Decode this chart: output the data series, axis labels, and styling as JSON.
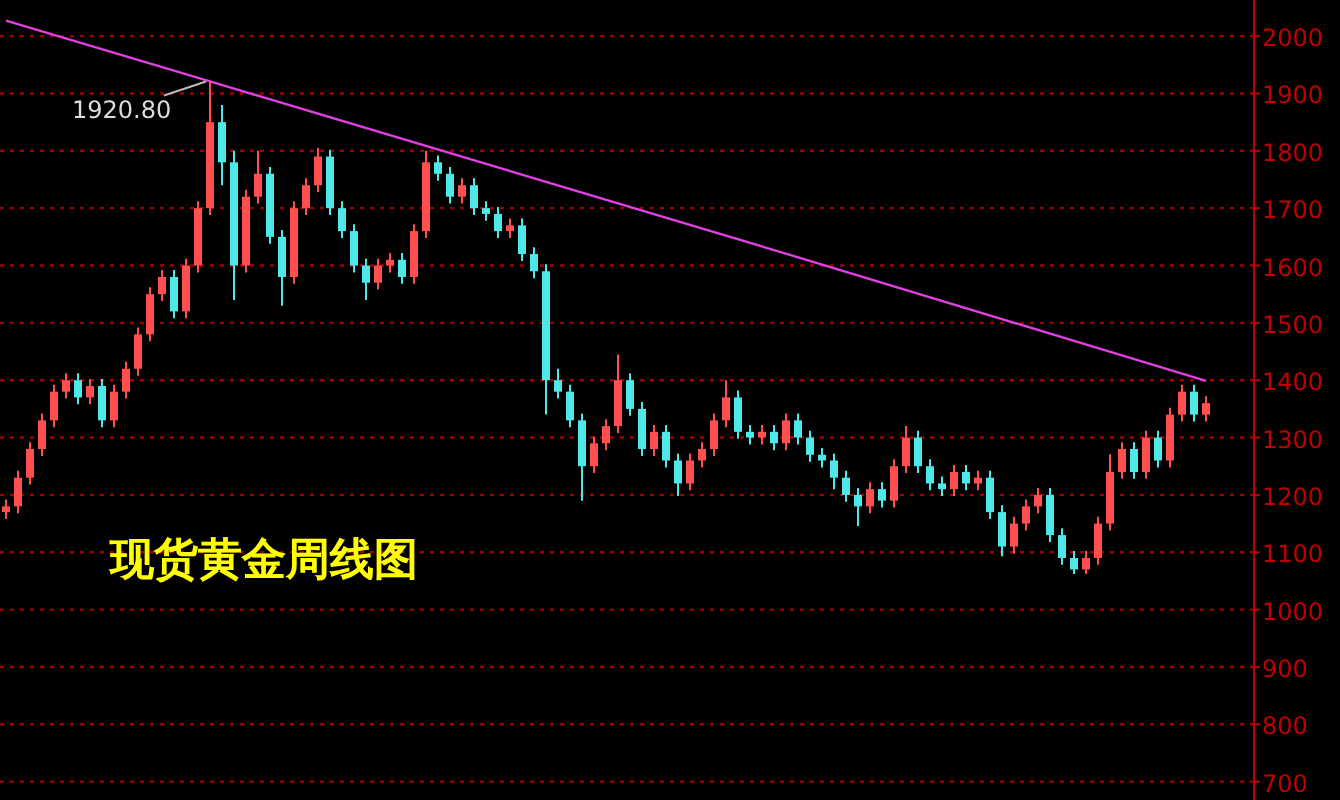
{
  "chart_data": {
    "type": "candlestick",
    "title": "现货黄金周线图",
    "categories": [
      null,
      null,
      null,
      null,
      null,
      null,
      null,
      null,
      null,
      null,
      null,
      null,
      null,
      null,
      null,
      null,
      null,
      null,
      null,
      null,
      null,
      null,
      null,
      null,
      null,
      null,
      null,
      null,
      null,
      null,
      null,
      null,
      null,
      null,
      null,
      null,
      null,
      null,
      null,
      null,
      null,
      null,
      null,
      null,
      null,
      null,
      null,
      null,
      null,
      null,
      null,
      null,
      null,
      null,
      null,
      null,
      null,
      null,
      null,
      null,
      null,
      null,
      null,
      null,
      null,
      null,
      null,
      null,
      null,
      null,
      null,
      null,
      null,
      null,
      null,
      null,
      null,
      null,
      null,
      null,
      null,
      null,
      null,
      null,
      null,
      null,
      null,
      null,
      null,
      null,
      null,
      null,
      null,
      null,
      null,
      null,
      null,
      null,
      null,
      null,
      null
    ],
    "ohlc": [
      [
        1170,
        1192,
        1158,
        1180
      ],
      [
        1180,
        1242,
        1168,
        1230
      ],
      [
        1230,
        1292,
        1218,
        1280
      ],
      [
        1280,
        1342,
        1268,
        1330
      ],
      [
        1330,
        1392,
        1318,
        1380
      ],
      [
        1380,
        1412,
        1368,
        1400
      ],
      [
        1400,
        1412,
        1358,
        1370
      ],
      [
        1370,
        1402,
        1358,
        1390
      ],
      [
        1390,
        1402,
        1318,
        1330
      ],
      [
        1330,
        1392,
        1318,
        1380
      ],
      [
        1380,
        1432,
        1368,
        1420
      ],
      [
        1420,
        1492,
        1408,
        1480
      ],
      [
        1480,
        1562,
        1468,
        1550
      ],
      [
        1550,
        1592,
        1538,
        1580
      ],
      [
        1580,
        1592,
        1508,
        1520
      ],
      [
        1520,
        1612,
        1508,
        1600
      ],
      [
        1600,
        1712,
        1588,
        1700
      ],
      [
        1700,
        1920.8,
        1688,
        1850
      ],
      [
        1850,
        1880,
        1740,
        1780
      ],
      [
        1780,
        1800,
        1540,
        1600
      ],
      [
        1600,
        1732,
        1588,
        1720
      ],
      [
        1720,
        1800,
        1708,
        1760
      ],
      [
        1760,
        1772,
        1638,
        1650
      ],
      [
        1650,
        1662,
        1530,
        1580
      ],
      [
        1580,
        1712,
        1568,
        1700
      ],
      [
        1700,
        1752,
        1688,
        1740
      ],
      [
        1740,
        1805,
        1728,
        1790
      ],
      [
        1790,
        1802,
        1688,
        1700
      ],
      [
        1700,
        1712,
        1648,
        1660
      ],
      [
        1660,
        1672,
        1588,
        1600
      ],
      [
        1600,
        1612,
        1540,
        1570
      ],
      [
        1570,
        1612,
        1558,
        1600
      ],
      [
        1600,
        1622,
        1588,
        1610
      ],
      [
        1610,
        1622,
        1568,
        1580
      ],
      [
        1580,
        1672,
        1568,
        1660
      ],
      [
        1660,
        1800,
        1648,
        1780
      ],
      [
        1780,
        1792,
        1748,
        1760
      ],
      [
        1760,
        1772,
        1708,
        1720
      ],
      [
        1720,
        1752,
        1708,
        1740
      ],
      [
        1740,
        1752,
        1688,
        1700
      ],
      [
        1700,
        1712,
        1678,
        1690
      ],
      [
        1690,
        1702,
        1648,
        1660
      ],
      [
        1660,
        1682,
        1648,
        1670
      ],
      [
        1670,
        1682,
        1608,
        1620
      ],
      [
        1620,
        1632,
        1578,
        1590
      ],
      [
        1590,
        1602,
        1340,
        1400
      ],
      [
        1400,
        1420,
        1368,
        1380
      ],
      [
        1380,
        1392,
        1318,
        1330
      ],
      [
        1330,
        1342,
        1190,
        1250
      ],
      [
        1250,
        1302,
        1238,
        1290
      ],
      [
        1290,
        1332,
        1278,
        1320
      ],
      [
        1320,
        1445,
        1308,
        1400
      ],
      [
        1400,
        1412,
        1338,
        1350
      ],
      [
        1350,
        1362,
        1268,
        1280
      ],
      [
        1280,
        1322,
        1268,
        1310
      ],
      [
        1310,
        1322,
        1248,
        1260
      ],
      [
        1260,
        1272,
        1198,
        1220
      ],
      [
        1220,
        1272,
        1208,
        1260
      ],
      [
        1260,
        1292,
        1248,
        1280
      ],
      [
        1280,
        1342,
        1268,
        1330
      ],
      [
        1330,
        1400,
        1318,
        1370
      ],
      [
        1370,
        1382,
        1298,
        1310
      ],
      [
        1310,
        1322,
        1288,
        1300
      ],
      [
        1300,
        1322,
        1288,
        1310
      ],
      [
        1310,
        1322,
        1278,
        1290
      ],
      [
        1290,
        1342,
        1278,
        1330
      ],
      [
        1330,
        1342,
        1288,
        1300
      ],
      [
        1300,
        1312,
        1258,
        1270
      ],
      [
        1270,
        1282,
        1248,
        1260
      ],
      [
        1260,
        1272,
        1210,
        1230
      ],
      [
        1230,
        1242,
        1188,
        1200
      ],
      [
        1200,
        1212,
        1146,
        1180
      ],
      [
        1180,
        1222,
        1168,
        1210
      ],
      [
        1210,
        1222,
        1178,
        1190
      ],
      [
        1190,
        1262,
        1178,
        1250
      ],
      [
        1250,
        1320,
        1238,
        1300
      ],
      [
        1300,
        1312,
        1238,
        1250
      ],
      [
        1250,
        1262,
        1208,
        1220
      ],
      [
        1220,
        1232,
        1198,
        1210
      ],
      [
        1210,
        1252,
        1198,
        1240
      ],
      [
        1240,
        1252,
        1208,
        1220
      ],
      [
        1220,
        1242,
        1208,
        1230
      ],
      [
        1230,
        1242,
        1158,
        1170
      ],
      [
        1170,
        1182,
        1093,
        1110
      ],
      [
        1110,
        1162,
        1098,
        1150
      ],
      [
        1150,
        1192,
        1138,
        1180
      ],
      [
        1180,
        1212,
        1168,
        1200
      ],
      [
        1200,
        1212,
        1118,
        1130
      ],
      [
        1130,
        1142,
        1078,
        1090
      ],
      [
        1090,
        1102,
        1062,
        1070
      ],
      [
        1070,
        1102,
        1062,
        1090
      ],
      [
        1090,
        1162,
        1078,
        1150
      ],
      [
        1150,
        1271,
        1138,
        1240
      ],
      [
        1240,
        1292,
        1228,
        1280
      ],
      [
        1280,
        1292,
        1228,
        1240
      ],
      [
        1240,
        1312,
        1228,
        1300
      ],
      [
        1300,
        1312,
        1248,
        1260
      ],
      [
        1260,
        1352,
        1248,
        1340
      ],
      [
        1340,
        1392,
        1328,
        1380
      ],
      [
        1380,
        1392,
        1328,
        1340
      ],
      [
        1340,
        1372,
        1328,
        1360
      ]
    ],
    "colors": [
      "#ff4f4f",
      "#ff4f4f",
      "#ff4f4f",
      "#ff4f4f",
      "#ff4f4f",
      "#ff4f4f",
      "#4fe8e8",
      "#ff4f4f",
      "#4fe8e8",
      "#ff4f4f",
      "#ff4f4f",
      "#ff4f4f",
      "#ff4f4f",
      "#ff4f4f",
      "#4fe8e8",
      "#ff4f4f",
      "#ff4f4f",
      "#ff4f4f",
      "#4fe8e8",
      "#4fe8e8",
      "#ff4f4f",
      "#ff4f4f",
      "#4fe8e8",
      "#4fe8e8",
      "#ff4f4f",
      "#ff4f4f",
      "#ff4f4f",
      "#4fe8e8",
      "#4fe8e8",
      "#4fe8e8",
      "#4fe8e8",
      "#ff4f4f",
      "#ff4f4f",
      "#4fe8e8",
      "#ff4f4f",
      "#ff4f4f",
      "#4fe8e8",
      "#4fe8e8",
      "#ff4f4f",
      "#4fe8e8",
      "#4fe8e8",
      "#4fe8e8",
      "#ff4f4f",
      "#4fe8e8",
      "#4fe8e8",
      "#4fe8e8",
      "#4fe8e8",
      "#4fe8e8",
      "#4fe8e8",
      "#ff4f4f",
      "#ff4f4f",
      "#ff4f4f",
      "#4fe8e8",
      "#4fe8e8",
      "#ff4f4f",
      "#4fe8e8",
      "#4fe8e8",
      "#ff4f4f",
      "#ff4f4f",
      "#ff4f4f",
      "#ff4f4f",
      "#4fe8e8",
      "#4fe8e8",
      "#ff4f4f",
      "#4fe8e8",
      "#ff4f4f",
      "#4fe8e8",
      "#4fe8e8",
      "#4fe8e8",
      "#4fe8e8",
      "#4fe8e8",
      "#4fe8e8",
      "#ff4f4f",
      "#4fe8e8",
      "#ff4f4f",
      "#ff4f4f",
      "#4fe8e8",
      "#4fe8e8",
      "#4fe8e8",
      "#ff4f4f",
      "#4fe8e8",
      "#ff4f4f",
      "#4fe8e8",
      "#4fe8e8",
      "#ff4f4f",
      "#ff4f4f",
      "#ff4f4f",
      "#4fe8e8",
      "#4fe8e8",
      "#4fe8e8",
      "#ff4f4f",
      "#ff4f4f",
      "#ff4f4f",
      "#ff4f4f",
      "#4fe8e8",
      "#ff4f4f",
      "#4fe8e8",
      "#ff4f4f",
      "#ff4f4f",
      "#4fe8e8",
      "#ff4f4f"
    ],
    "series": [
      {
        "type": "line",
        "values": [
          2027,
          null,
          null,
          null,
          null,
          null,
          null,
          null,
          null,
          null,
          null,
          null,
          null,
          null,
          null,
          null,
          null,
          1921,
          null,
          null,
          null,
          null,
          null,
          null,
          null,
          null,
          null,
          null,
          null,
          null,
          null,
          null,
          null,
          null,
          null,
          null,
          null,
          null,
          null,
          null,
          null,
          null,
          null,
          null,
          null,
          null,
          null,
          null,
          null,
          null,
          null,
          null,
          null,
          null,
          null,
          null,
          null,
          null,
          null,
          null,
          null,
          null,
          null,
          null,
          1627,
          null,
          null,
          null,
          null,
          null,
          null,
          null,
          null,
          null,
          null,
          null,
          null,
          null,
          null,
          null,
          null,
          null,
          null,
          null,
          null,
          null,
          null,
          null,
          null,
          null,
          null,
          null,
          null,
          null,
          null,
          null,
          null,
          null,
          null,
          null,
          1399
        ],
        "color": "#e040e0",
        "marker": "none"
      }
    ],
    "annotations": [
      "1920.80"
    ],
    "ylim": [
      668,
      2063
    ],
    "yticks": [
      700,
      800,
      900,
      1000,
      1100,
      1200,
      1300,
      1400,
      1500,
      1600,
      1700,
      1800,
      1900,
      2000
    ],
    "grid": "y",
    "tick_labels": "y"
  }
}
